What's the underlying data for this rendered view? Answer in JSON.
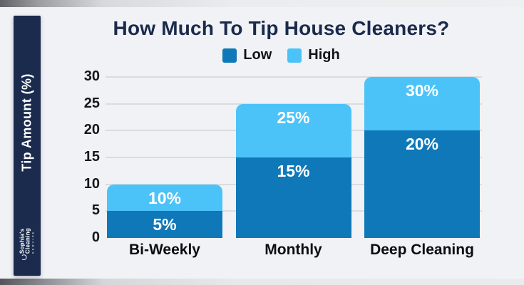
{
  "sidebar": {
    "axis_label": "Tip Amount (%)",
    "logo": {
      "line1": "Sophia's",
      "line2": "Cleaning",
      "line3": "SERVICE"
    }
  },
  "chart_data": {
    "type": "bar",
    "stacked": true,
    "title": "How Much To Tip House Cleaners?",
    "ylabel": "Tip Amount (%)",
    "xlabel": "",
    "ylim": [
      0,
      30
    ],
    "yticks": [
      0,
      5,
      10,
      15,
      20,
      25,
      30
    ],
    "grid": true,
    "legend_position": "top-center",
    "categories": [
      "Bi-Weekly",
      "Monthly",
      "Deep Cleaning"
    ],
    "series": [
      {
        "name": "Low",
        "color": "#0e78b9",
        "values": [
          5,
          15,
          20
        ],
        "labels": [
          "5%",
          "15%",
          "20%"
        ]
      },
      {
        "name": "High",
        "color": "#4cc3f8",
        "values": [
          10,
          25,
          30
        ],
        "labels": [
          "10%",
          "25%",
          "30%"
        ]
      }
    ],
    "colors": {
      "title": "#1b2a4c",
      "gridline": "#d9dce1",
      "sidebar": "#1b2b4e"
    }
  }
}
